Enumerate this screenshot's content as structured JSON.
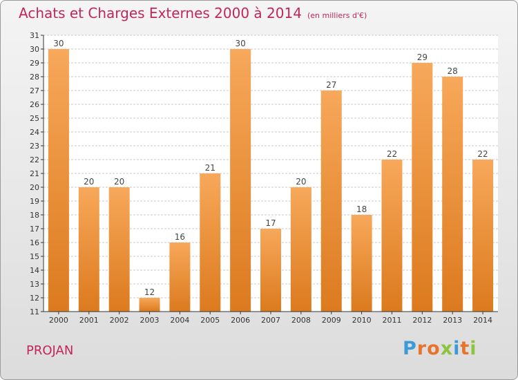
{
  "header": {
    "title": "Achats et Charges Externes 2000 à 2014",
    "unit": "(en milliers d'€)"
  },
  "footer": {
    "commune": "PROJAN",
    "logo_text": "Proxiti",
    "logo_colors": [
      "#3e9ad6",
      "#e8742c",
      "#e8742c",
      "#8cc43f",
      "#3e9ad6",
      "#e8742c",
      "#8cc43f"
    ]
  },
  "colors": {
    "title": "#c0265a",
    "bar_light": "#f7a85a",
    "bar_dark": "#dc7a1e",
    "grid": "#c8c8c8",
    "axis": "#333333"
  },
  "chart_data": {
    "type": "bar",
    "title": "Achats et Charges Externes 2000 à 2014",
    "subtitle": "(en milliers d'€)",
    "xlabel": "",
    "ylabel": "",
    "categories": [
      "2000",
      "2001",
      "2002",
      "2003",
      "2004",
      "2005",
      "2006",
      "2007",
      "2008",
      "2009",
      "2010",
      "2011",
      "2012",
      "2013",
      "2014"
    ],
    "values": [
      30,
      20,
      20,
      12,
      16,
      21,
      30,
      17,
      20,
      27,
      18,
      22,
      29,
      28,
      22
    ],
    "ylim": [
      11,
      31
    ],
    "yticks": [
      11,
      12,
      13,
      14,
      15,
      16,
      17,
      18,
      19,
      20,
      21,
      22,
      23,
      24,
      25,
      26,
      27,
      28,
      29,
      30,
      31
    ],
    "grid": true,
    "legend": "none"
  }
}
